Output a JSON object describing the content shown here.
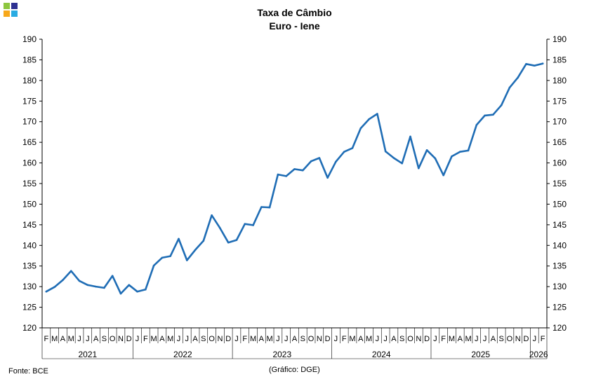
{
  "title": "Taxa de Câmbio",
  "subtitle": "Euro - Iene",
  "source": "Fonte: BCE",
  "credit": "(Gráfico: DGE)",
  "logo_colors": [
    "#8dc63f",
    "#2e3192",
    "#f7a81b",
    "#29abe2"
  ],
  "chart_data": {
    "type": "line",
    "title": "Taxa de Câmbio",
    "subtitle": "Euro - Iene",
    "ylim": [
      120,
      190
    ],
    "yticks": [
      120,
      125,
      130,
      135,
      140,
      145,
      150,
      155,
      160,
      165,
      170,
      175,
      180,
      185,
      190
    ],
    "grid": false,
    "line_color": "#1f6db5",
    "month_labels": [
      "F",
      "M",
      "A",
      "M",
      "J",
      "J",
      "A",
      "S",
      "O",
      "N",
      "D",
      "J",
      "F",
      "M",
      "A",
      "M",
      "J",
      "J",
      "A",
      "S",
      "O",
      "N",
      "D",
      "J",
      "F",
      "M",
      "A",
      "M",
      "J",
      "J",
      "A",
      "S",
      "O",
      "N",
      "D",
      "J",
      "F",
      "M",
      "A",
      "M",
      "J",
      "J",
      "A",
      "S",
      "O",
      "N",
      "D",
      "J",
      "F",
      "M",
      "A",
      "M",
      "J",
      "J",
      "A",
      "S",
      "O",
      "N",
      "D",
      "J",
      "F"
    ],
    "year_labels": [
      "2021",
      "2022",
      "2023",
      "2024",
      "2025",
      "2026"
    ],
    "year_spans": [
      [
        0,
        10
      ],
      [
        11,
        22
      ],
      [
        23,
        34
      ],
      [
        35,
        46
      ],
      [
        47,
        58
      ],
      [
        59,
        60
      ]
    ],
    "values": [
      128.8,
      129.9,
      131.6,
      133.8,
      131.4,
      130.4,
      130.0,
      129.7,
      132.6,
      128.3,
      130.4,
      128.8,
      129.3,
      135.1,
      137.0,
      137.4,
      141.6,
      136.4,
      138.9,
      141.1,
      147.3,
      144.2,
      140.7,
      141.3,
      145.2,
      144.9,
      149.3,
      149.2,
      157.2,
      156.8,
      158.5,
      158.2,
      160.4,
      161.2,
      156.4,
      160.3,
      162.7,
      163.6,
      168.4,
      170.6,
      171.9,
      162.8,
      161.2,
      159.9,
      166.4,
      158.7,
      163.1,
      161.1,
      157.0,
      161.6,
      162.7,
      163.0,
      169.2,
      171.5,
      171.7,
      174.0,
      178.3,
      180.7,
      184.0,
      183.6,
      184.1
    ]
  }
}
